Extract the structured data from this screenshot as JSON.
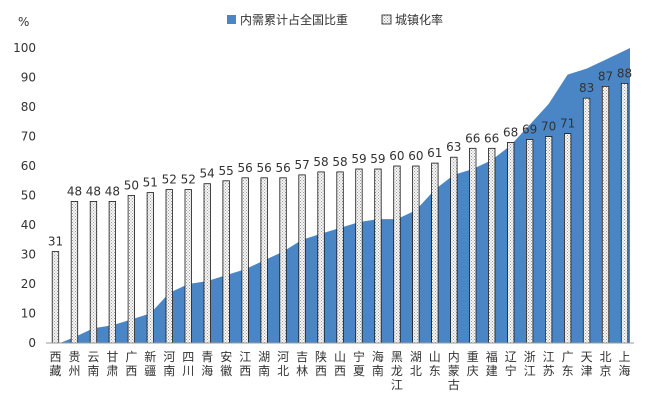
{
  "chart_data": {
    "type": "bar",
    "yunit": "%",
    "ylim": [
      0,
      100
    ],
    "yticks": [
      0,
      10,
      20,
      30,
      40,
      50,
      60,
      70,
      80,
      90,
      100
    ],
    "grid": false,
    "legend_position": "top",
    "categories": [
      "西藏",
      "贵州",
      "云南",
      "甘肃",
      "广西",
      "新疆",
      "河南",
      "四川",
      "青海",
      "安徽",
      "江西",
      "湖南",
      "河北",
      "吉林",
      "陕西",
      "山西",
      "宁夏",
      "海南",
      "黑龙江",
      "湖北",
      "山东",
      "内蒙古",
      "重庆",
      "福建",
      "辽宁",
      "浙江",
      "江苏",
      "广东",
      "天津",
      "北京",
      "上海"
    ],
    "series": [
      {
        "name": "内需累计占全国比重",
        "type": "area",
        "color": "#4a86c5",
        "values": [
          0,
          2,
          5,
          6,
          8,
          10,
          17,
          20,
          21,
          23,
          25,
          28,
          31,
          35,
          37,
          39,
          41,
          42,
          42,
          45,
          52,
          57,
          59,
          62,
          67,
          74,
          81,
          91,
          93,
          96,
          100
        ]
      },
      {
        "name": "城镇化率",
        "type": "bar",
        "pattern": "dotted",
        "values": [
          31,
          48,
          48,
          48,
          50,
          51,
          52,
          52,
          54,
          55,
          56,
          56,
          56,
          57,
          58,
          58,
          59,
          59,
          60,
          60,
          61,
          63,
          66,
          66,
          68,
          69,
          70,
          71,
          83,
          87,
          88
        ]
      }
    ]
  }
}
